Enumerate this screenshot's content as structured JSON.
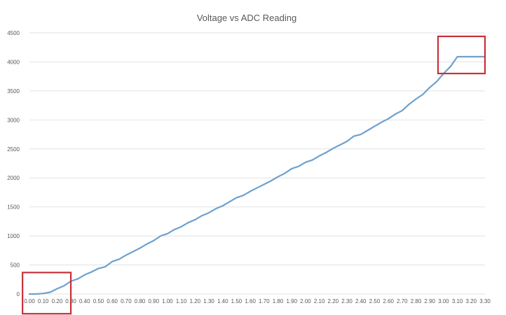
{
  "chart_data": {
    "type": "line",
    "title": "Voltage vs ADC Reading",
    "xlabel": "",
    "ylabel": "",
    "x": [
      0.0,
      0.05,
      0.1,
      0.15,
      0.2,
      0.25,
      0.3,
      0.35,
      0.4,
      0.45,
      0.5,
      0.55,
      0.6,
      0.65,
      0.7,
      0.75,
      0.8,
      0.85,
      0.9,
      0.95,
      1.0,
      1.05,
      1.1,
      1.15,
      1.2,
      1.25,
      1.3,
      1.35,
      1.4,
      1.45,
      1.5,
      1.55,
      1.6,
      1.65,
      1.7,
      1.75,
      1.8,
      1.85,
      1.9,
      1.95,
      2.0,
      2.05,
      2.1,
      2.15,
      2.2,
      2.25,
      2.3,
      2.35,
      2.4,
      2.45,
      2.5,
      2.55,
      2.6,
      2.65,
      2.7,
      2.75,
      2.8,
      2.85,
      2.9,
      2.95,
      3.0,
      3.05,
      3.1,
      3.15,
      3.2,
      3.25,
      3.3
    ],
    "series": [
      {
        "values": [
          0,
          0,
          10,
          30,
          90,
          140,
          220,
          260,
          330,
          380,
          440,
          470,
          560,
          600,
          670,
          730,
          790,
          860,
          920,
          1000,
          1040,
          1110,
          1160,
          1230,
          1280,
          1350,
          1400,
          1470,
          1520,
          1590,
          1660,
          1700,
          1770,
          1830,
          1890,
          1950,
          2020,
          2080,
          2160,
          2200,
          2270,
          2310,
          2380,
          2440,
          2510,
          2570,
          2630,
          2720,
          2750,
          2820,
          2890,
          2960,
          3020,
          3100,
          3160,
          3270,
          3360,
          3440,
          3560,
          3660,
          3800,
          3920,
          4090,
          4090,
          4090,
          4090,
          4090
        ],
        "color": "#6ea1cd"
      }
    ],
    "xticks": [
      "0.00",
      "0.10",
      "0.20",
      "0.30",
      "0.40",
      "0.50",
      "0.60",
      "0.70",
      "0.80",
      "0.90",
      "1.00",
      "1.10",
      "1.20",
      "1.30",
      "1.40",
      "1.50",
      "1.60",
      "1.70",
      "1.80",
      "1.90",
      "2.00",
      "2.10",
      "2.20",
      "2.30",
      "2.40",
      "2.50",
      "2.60",
      "2.70",
      "2.80",
      "2.90",
      "3.00",
      "3.10",
      "3.20",
      "3.30"
    ],
    "yticks": [
      "0",
      "500",
      "1000",
      "1500",
      "2000",
      "2500",
      "3000",
      "3500",
      "4000",
      "4500"
    ],
    "xlim": [
      0.0,
      3.3
    ],
    "ylim": [
      0,
      4500
    ],
    "grid": true,
    "legend": "none",
    "highlight_color": "#c8303a",
    "highlights": [
      {
        "x0": -0.05,
        "x1": 0.3,
        "y0": -340,
        "y1": 370
      },
      {
        "x0": 2.96,
        "x1": 3.3,
        "y0": 3800,
        "y1": 4440
      }
    ]
  }
}
